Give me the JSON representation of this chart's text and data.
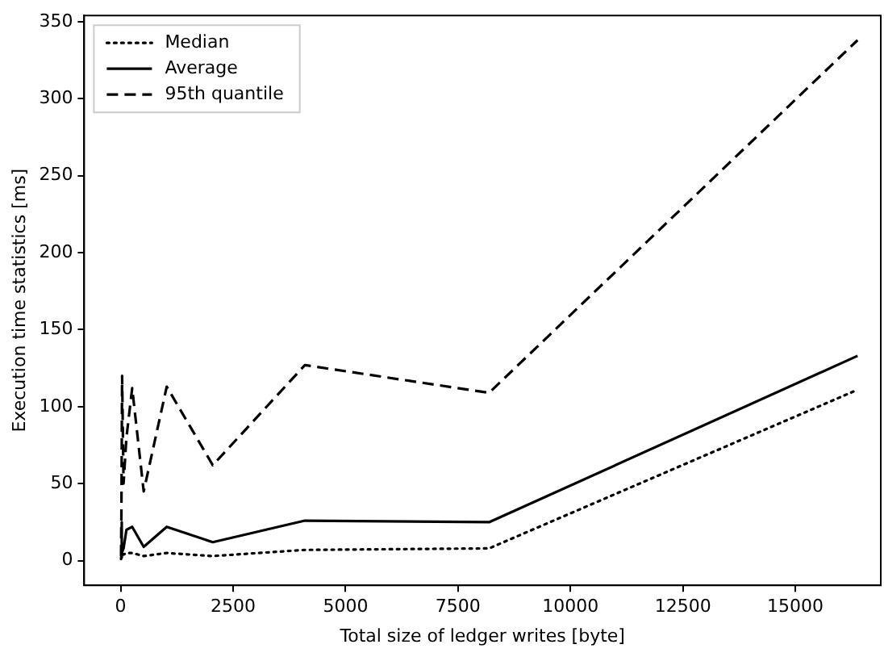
{
  "chart_data": {
    "type": "line",
    "xlabel": "Total size of ledger writes [byte]",
    "ylabel": "Execution time statistics [ms]",
    "x": [
      8,
      16,
      32,
      64,
      128,
      256,
      512,
      1024,
      2048,
      4096,
      8192,
      16384
    ],
    "series": [
      {
        "name": "Median",
        "color": "#000000",
        "line_style": "dotted",
        "values": [
          1,
          4,
          5,
          4,
          5,
          5,
          3,
          5,
          3,
          7,
          8,
          111
        ]
      },
      {
        "name": "Average",
        "color": "#000000",
        "line_style": "solid",
        "values": [
          2,
          25,
          5,
          8,
          20,
          22,
          9,
          22,
          12,
          26,
          25,
          133
        ]
      },
      {
        "name": "95th quantile",
        "color": "#000000",
        "line_style": "dashed",
        "values": [
          3,
          30,
          120,
          50,
          80,
          112,
          45,
          113,
          62,
          127,
          109,
          338
        ]
      }
    ],
    "xlim": [
      -811,
      16900
    ],
    "xticks": [
      0,
      2500,
      5000,
      7500,
      10000,
      12500,
      15000
    ],
    "ylim": [
      -16,
      354
    ],
    "yticks": [
      0,
      50,
      100,
      150,
      200,
      250,
      300,
      350
    ],
    "grid": false,
    "legend": "top left",
    "marker": "none"
  }
}
